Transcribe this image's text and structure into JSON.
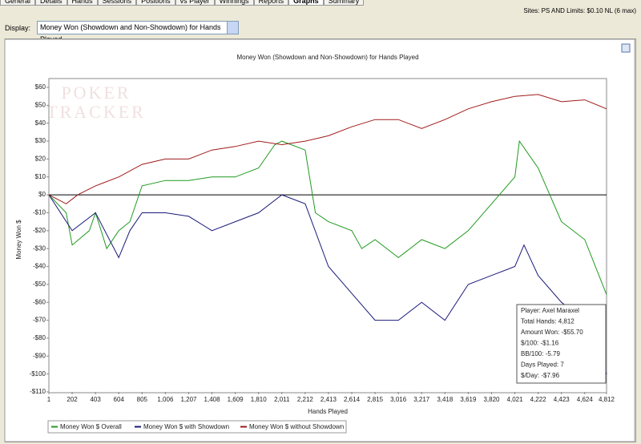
{
  "tabs": [
    "General",
    "Details",
    "Hands",
    "Sessions",
    "Positions",
    "vs Player",
    "Winnings",
    "Reports",
    "Graphs",
    "Summary"
  ],
  "active_tab": "Graphs",
  "filter_text": "Sites: PS AND Limits: $0.10 NL (6 max)",
  "display_label": "Display:",
  "display_value": "Money Won (Showdown and Non-Showdown) for Hands Played",
  "chart_data": {
    "type": "line",
    "title": "Money Won (Showdown and Non-Showdown) for Hands Played",
    "x_label": "Hands Played",
    "y_label": "Money Won $",
    "watermark": [
      "POKER",
      "TRACKER"
    ],
    "xlim": [
      1,
      4812
    ],
    "ylim": [
      -110,
      60
    ],
    "xticks": [
      1,
      202,
      403,
      604,
      805,
      {
        "value": 1006,
        "label": "1,006"
      },
      {
        "value": 1207,
        "label": "1,207"
      },
      {
        "value": 1408,
        "label": "1,408"
      },
      {
        "value": 1609,
        "label": "1,609"
      },
      {
        "value": 1810,
        "label": "1,810"
      },
      {
        "value": 2011,
        "label": "2,011"
      },
      {
        "value": 2212,
        "label": "2,212"
      },
      {
        "value": 2413,
        "label": "2,413"
      },
      {
        "value": 2614,
        "label": "2,614"
      },
      {
        "value": 2815,
        "label": "2,815"
      },
      {
        "value": 3016,
        "label": "3,016"
      },
      {
        "value": 3217,
        "label": "3,217"
      },
      {
        "value": 3418,
        "label": "3,418"
      },
      {
        "value": 3619,
        "label": "3,619"
      },
      {
        "value": 3820,
        "label": "3,820"
      },
      {
        "value": 4021,
        "label": "4,021"
      },
      {
        "value": 4222,
        "label": "4,222"
      },
      {
        "value": 4423,
        "label": "4,423"
      },
      {
        "value": 4624,
        "label": "4,624"
      },
      {
        "value": 4812,
        "label": "4,812"
      }
    ],
    "yticks": [
      {
        "value": 60,
        "label": "$60"
      },
      {
        "value": 50,
        "label": "$50"
      },
      {
        "value": 40,
        "label": "$40"
      },
      {
        "value": 30,
        "label": "$30"
      },
      {
        "value": 20,
        "label": "$20"
      },
      {
        "value": 10,
        "label": "$10"
      },
      {
        "value": 0,
        "label": "$0"
      },
      {
        "value": -10,
        "label": "-$10"
      },
      {
        "value": -20,
        "label": "-$20"
      },
      {
        "value": -30,
        "label": "-$30"
      },
      {
        "value": -40,
        "label": "-$40"
      },
      {
        "value": -50,
        "label": "-$50"
      },
      {
        "value": -60,
        "label": "-$60"
      },
      {
        "value": -70,
        "label": "-$70"
      },
      {
        "value": -80,
        "label": "-$80"
      },
      {
        "value": -90,
        "label": "-$90"
      },
      {
        "value": -100,
        "label": "-$100"
      },
      {
        "value": -110,
        "label": "-$110"
      }
    ],
    "series": [
      {
        "name": "Money Won $ Overall",
        "color": "#1f9a1f",
        "x": [
          1,
          150,
          202,
          350,
          403,
          500,
          604,
          700,
          805,
          1006,
          1207,
          1408,
          1609,
          1810,
          1950,
          2011,
          2212,
          2300,
          2413,
          2614,
          2700,
          2815,
          3016,
          3217,
          3418,
          3619,
          3820,
          4021,
          4060,
          4222,
          4423,
          4624,
          4812
        ],
        "values": [
          0,
          -10,
          -28,
          -20,
          -10,
          -30,
          -20,
          -15,
          5,
          8,
          8,
          10,
          10,
          15,
          28,
          30,
          25,
          -10,
          -15,
          -20,
          -30,
          -25,
          -35,
          -25,
          -30,
          -20,
          -5,
          10,
          30,
          15,
          -15,
          -25,
          -55.7
        ]
      },
      {
        "name": "Money Won $ with Showdown",
        "color": "#1a1a7a",
        "x": [
          1,
          202,
          403,
          604,
          700,
          805,
          1006,
          1207,
          1408,
          1609,
          1810,
          2011,
          2212,
          2413,
          2614,
          2815,
          3016,
          3217,
          3418,
          3619,
          3820,
          4021,
          4100,
          4222,
          4423,
          4624,
          4812
        ],
        "values": [
          0,
          -20,
          -10,
          -35,
          -20,
          -10,
          -10,
          -12,
          -20,
          -15,
          -10,
          0,
          -5,
          -40,
          -55,
          -70,
          -70,
          -60,
          -70,
          -50,
          -45,
          -40,
          -28,
          -45,
          -60,
          -70,
          -100
        ]
      },
      {
        "name": "Money Won $ without Showdown",
        "color": "#a01a1a",
        "x": [
          1,
          150,
          250,
          403,
          604,
          805,
          1006,
          1207,
          1408,
          1609,
          1810,
          2011,
          2212,
          2413,
          2614,
          2815,
          3016,
          3217,
          3418,
          3619,
          3820,
          4021,
          4222,
          4423,
          4624,
          4812
        ],
        "values": [
          0,
          -5,
          0,
          5,
          10,
          17,
          20,
          20,
          25,
          27,
          30,
          28,
          30,
          33,
          38,
          42,
          42,
          37,
          42,
          48,
          52,
          55,
          56,
          52,
          53,
          48
        ]
      }
    ],
    "info_box": [
      "Player: Axel Maraxel",
      "Total Hands: 4,812",
      "Amount Won: -$55.70",
      "$/100: -$1.16",
      "BB/100: -5.79",
      "Days Played: 7",
      "$/Day: -$7.96"
    ]
  }
}
